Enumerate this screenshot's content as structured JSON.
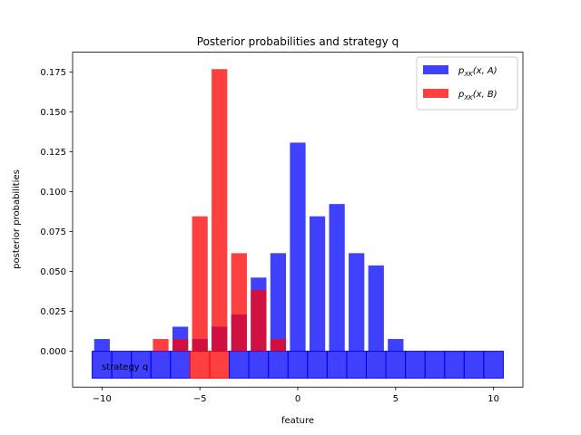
{
  "chart_data": {
    "type": "bar",
    "title": "Posterior probabilities and strategy q",
    "xlabel": "feature",
    "ylabel": "posterior probabilities",
    "xlim": [
      -11.5,
      11.5
    ],
    "ylim": [
      -0.0225,
      0.1875
    ],
    "xticks": [
      -10,
      -5,
      0,
      5,
      10
    ],
    "xtick_labels": [
      "−10",
      "−5",
      "0",
      "5",
      "10"
    ],
    "yticks": [
      0.0,
      0.025,
      0.05,
      0.075,
      0.1,
      0.125,
      0.15,
      0.175
    ],
    "ytick_labels": [
      "0.000",
      "0.025",
      "0.050",
      "0.075",
      "0.100",
      "0.125",
      "0.150",
      "0.175"
    ],
    "grid": false,
    "legend_position": "top-right",
    "colors": {
      "A": "#0000ff",
      "B": "#ff0000",
      "bar_alpha": 0.75
    },
    "x": [
      -10,
      -9,
      -8,
      -7,
      -6,
      -5,
      -4,
      -3,
      -2,
      -1,
      0,
      1,
      2,
      3,
      4,
      5,
      6,
      7,
      8,
      9,
      10
    ],
    "series": [
      {
        "key": "A",
        "name": "p_XK(x, A)",
        "values": [
          0.0077,
          0,
          0,
          0,
          0.0154,
          0.0077,
          0.0154,
          0.0231,
          0.0462,
          0.0615,
          0.1308,
          0.0846,
          0.0923,
          0.0615,
          0.0538,
          0.0077,
          0,
          0,
          0,
          0,
          0
        ]
      },
      {
        "key": "B",
        "name": "p_XK(x, B)",
        "values": [
          0,
          0,
          0,
          0.0077,
          0.0077,
          0.0846,
          0.1769,
          0.0615,
          0.0385,
          0.0077,
          0,
          0,
          0,
          0,
          0,
          0,
          0,
          0,
          0,
          0,
          0
        ]
      }
    ],
    "strategy": {
      "label": "strategy q",
      "y_top": 0.0,
      "values": [
        "A",
        "A",
        "A",
        "A",
        "A",
        "B",
        "B",
        "A",
        "A",
        "A",
        "A",
        "A",
        "A",
        "A",
        "A",
        "A",
        "A",
        "A",
        "A",
        "A",
        "A"
      ]
    }
  }
}
